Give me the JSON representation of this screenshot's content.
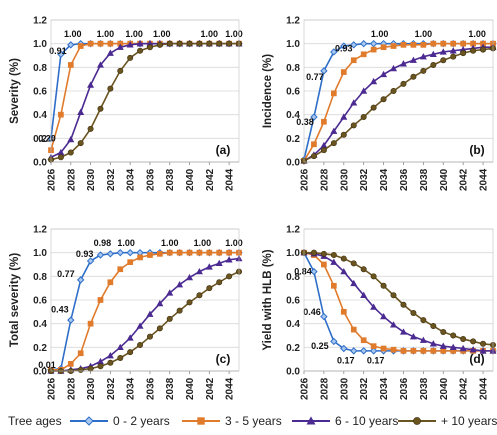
{
  "x_years": [
    2026,
    2027,
    2028,
    2029,
    2030,
    2031,
    2032,
    2033,
    2034,
    2035,
    2036,
    2037,
    2038,
    2039,
    2040,
    2041,
    2042,
    2043,
    2044,
    2045
  ],
  "x_tick_labels": [
    "2026",
    "2028",
    "2030",
    "2032",
    "2034",
    "2036",
    "2038",
    "2040",
    "2042",
    "2044"
  ],
  "y_tick_labels": [
    "0.0",
    "0.2",
    "0.4",
    "0.6",
    "0.8",
    "1.0",
    "1.2"
  ],
  "colors": {
    "0-2": "#2e6ec8",
    "3-5": "#e07b2c",
    "6-10": "#4b2a91",
    "10plus": "#6a5420"
  },
  "legend": {
    "title": "Tree ages",
    "items": [
      {
        "key": "0-2",
        "label": "0 - 2 years",
        "marker": "diamond"
      },
      {
        "key": "3-5",
        "label": "3 - 5 years",
        "marker": "square"
      },
      {
        "key": "6-10",
        "label": "6 - 10 years",
        "marker": "triangle"
      },
      {
        "key": "10plus",
        "label": "+ 10 years",
        "marker": "circle"
      }
    ]
  },
  "chart_data": [
    {
      "type": "line",
      "panel_label": "(a)",
      "ylabel": "Severity (%)",
      "ylim": [
        0,
        1.2
      ],
      "xlim": [
        2026,
        2045
      ],
      "grid": "horizontal",
      "series": [
        {
          "key": "0-2",
          "name": "0 - 2 years",
          "values": [
            0.2,
            0.91,
            0.99,
            1.0,
            1.0,
            1.0,
            1.0,
            1.0,
            1.0,
            1.0,
            1.0,
            1.0,
            1.0,
            1.0,
            1.0,
            1.0,
            1.0,
            1.0,
            1.0,
            1.0
          ]
        },
        {
          "key": "3-5",
          "name": "3 - 5 years",
          "values": [
            0.1,
            0.4,
            0.82,
            0.98,
            1.0,
            1.0,
            1.0,
            1.0,
            1.0,
            1.0,
            1.0,
            1.0,
            1.0,
            1.0,
            1.0,
            1.0,
            1.0,
            1.0,
            1.0,
            1.0
          ]
        },
        {
          "key": "6-10",
          "name": "6 - 10 years",
          "values": [
            0.04,
            0.08,
            0.19,
            0.42,
            0.65,
            0.82,
            0.92,
            0.97,
            0.99,
            1.0,
            1.0,
            1.0,
            1.0,
            1.0,
            1.0,
            1.0,
            1.0,
            1.0,
            1.0,
            1.0
          ]
        },
        {
          "key": "10plus",
          "name": "+ 10 years",
          "values": [
            0.02,
            0.04,
            0.08,
            0.16,
            0.28,
            0.45,
            0.62,
            0.77,
            0.88,
            0.94,
            0.97,
            0.99,
            1.0,
            1.0,
            1.0,
            1.0,
            1.0,
            1.0,
            1.0,
            1.0
          ]
        }
      ],
      "annotations": [
        {
          "text": "0.20",
          "x": 2025.6,
          "y": 0.2
        },
        {
          "text": "0.91",
          "x": 2026.7,
          "y": 0.94
        },
        {
          "text": "1.00",
          "x": 2028.2,
          "y": 1.08
        },
        {
          "text": "1.00",
          "x": 2031.5,
          "y": 1.08
        },
        {
          "text": "1.00",
          "x": 2034.4,
          "y": 1.08
        },
        {
          "text": "1.00",
          "x": 2037.2,
          "y": 1.08
        },
        {
          "text": "1.00",
          "x": 2042.0,
          "y": 1.08
        },
        {
          "text": "1.00",
          "x": 2044.5,
          "y": 1.08
        }
      ]
    },
    {
      "type": "line",
      "panel_label": "(b)",
      "ylabel": "Incidence (%)",
      "ylim": [
        0,
        1.2
      ],
      "xlim": [
        2026,
        2045
      ],
      "grid": "horizontal",
      "series": [
        {
          "key": "0-2",
          "name": "0 - 2 years",
          "values": [
            0.02,
            0.38,
            0.77,
            0.93,
            0.98,
            0.99,
            1.0,
            1.0,
            1.0,
            1.0,
            1.0,
            1.0,
            1.0,
            1.0,
            1.0,
            1.0,
            1.0,
            1.0,
            1.0,
            1.0
          ]
        },
        {
          "key": "3-5",
          "name": "3 - 5 years",
          "values": [
            0.01,
            0.15,
            0.34,
            0.58,
            0.76,
            0.86,
            0.91,
            0.95,
            0.97,
            0.98,
            0.99,
            0.99,
            0.99,
            1.0,
            1.0,
            1.0,
            1.0,
            1.0,
            1.0,
            1.0
          ]
        },
        {
          "key": "6-10",
          "name": "6 - 10 years",
          "values": [
            0.01,
            0.06,
            0.14,
            0.26,
            0.38,
            0.5,
            0.6,
            0.68,
            0.74,
            0.79,
            0.83,
            0.86,
            0.89,
            0.91,
            0.93,
            0.94,
            0.95,
            0.96,
            0.97,
            0.97
          ]
        },
        {
          "key": "10plus",
          "name": "+ 10 years",
          "values": [
            0.01,
            0.05,
            0.1,
            0.16,
            0.23,
            0.31,
            0.38,
            0.46,
            0.53,
            0.6,
            0.66,
            0.72,
            0.77,
            0.82,
            0.86,
            0.89,
            0.92,
            0.94,
            0.95,
            0.96
          ]
        }
      ],
      "annotations": [
        {
          "text": "0.38",
          "x": 2026.1,
          "y": 0.34
        },
        {
          "text": "0.77",
          "x": 2027.1,
          "y": 0.72
        },
        {
          "text": "0.93",
          "x": 2030.0,
          "y": 0.96
        },
        {
          "text": "1.00",
          "x": 2033.6,
          "y": 1.08
        },
        {
          "text": "1.00",
          "x": 2038.0,
          "y": 1.08
        },
        {
          "text": "1.00",
          "x": 2043.4,
          "y": 1.08
        }
      ]
    },
    {
      "type": "line",
      "panel_label": "(c)",
      "ylabel": "Total severity (%)",
      "ylim": [
        0,
        1.2
      ],
      "xlim": [
        2026,
        2045
      ],
      "grid": "horizontal",
      "series": [
        {
          "key": "0-2",
          "name": "0 - 2 years",
          "values": [
            0.01,
            0.02,
            0.43,
            0.77,
            0.93,
            0.98,
            0.99,
            1.0,
            1.0,
            1.0,
            1.0,
            1.0,
            1.0,
            1.0,
            1.0,
            1.0,
            1.0,
            1.0,
            1.0,
            1.0
          ]
        },
        {
          "key": "3-5",
          "name": "3 - 5 years",
          "values": [
            0.01,
            0.01,
            0.06,
            0.15,
            0.4,
            0.6,
            0.75,
            0.86,
            0.92,
            0.96,
            0.98,
            0.99,
            1.0,
            1.0,
            1.0,
            1.0,
            1.0,
            1.0,
            1.0,
            1.0
          ]
        },
        {
          "key": "6-10",
          "name": "6 - 10 years",
          "values": [
            0.0,
            0.0,
            0.01,
            0.02,
            0.04,
            0.08,
            0.13,
            0.2,
            0.28,
            0.38,
            0.48,
            0.57,
            0.66,
            0.73,
            0.79,
            0.84,
            0.88,
            0.91,
            0.94,
            0.95
          ]
        },
        {
          "key": "10plus",
          "name": "+ 10 years",
          "values": [
            0.0,
            0.0,
            0.0,
            0.01,
            0.02,
            0.04,
            0.07,
            0.11,
            0.16,
            0.22,
            0.29,
            0.36,
            0.44,
            0.51,
            0.58,
            0.64,
            0.7,
            0.75,
            0.8,
            0.84
          ]
        }
      ],
      "annotations": [
        {
          "text": "0.01",
          "x": 2025.6,
          "y": 0.05
        },
        {
          "text": "0.43",
          "x": 2026.9,
          "y": 0.52
        },
        {
          "text": "0.77",
          "x": 2027.5,
          "y": 0.82
        },
        {
          "text": "0.93",
          "x": 2029.4,
          "y": 0.99
        },
        {
          "text": "0.98",
          "x": 2031.2,
          "y": 1.08
        },
        {
          "text": "1.00",
          "x": 2033.6,
          "y": 1.08
        },
        {
          "text": "1.00",
          "x": 2038.0,
          "y": 1.08
        },
        {
          "text": "1.00",
          "x": 2041.3,
          "y": 1.08
        },
        {
          "text": "1.00",
          "x": 2044.5,
          "y": 1.08
        }
      ]
    },
    {
      "type": "line",
      "panel_label": "(d)",
      "ylabel": "Yield with HLB (%)",
      "ylim": [
        0,
        1.2
      ],
      "xlim": [
        2026,
        2045
      ],
      "grid": "horizontal",
      "series": [
        {
          "key": "0-2",
          "name": "0 - 2 years",
          "values": [
            1.0,
            0.84,
            0.46,
            0.25,
            0.19,
            0.17,
            0.17,
            0.17,
            0.17,
            0.17,
            0.17,
            0.17,
            0.17,
            0.17,
            0.17,
            0.17,
            0.17,
            0.17,
            0.17,
            0.17
          ]
        },
        {
          "key": "3-5",
          "name": "3 - 5 years",
          "values": [
            1.0,
            0.98,
            0.9,
            0.72,
            0.5,
            0.35,
            0.26,
            0.21,
            0.19,
            0.18,
            0.17,
            0.17,
            0.17,
            0.17,
            0.17,
            0.17,
            0.17,
            0.17,
            0.17,
            0.17
          ]
        },
        {
          "key": "6-10",
          "name": "6 - 10 years",
          "values": [
            1.0,
            0.99,
            0.97,
            0.92,
            0.84,
            0.74,
            0.64,
            0.54,
            0.46,
            0.39,
            0.33,
            0.29,
            0.26,
            0.23,
            0.21,
            0.2,
            0.19,
            0.18,
            0.17,
            0.17
          ]
        },
        {
          "key": "10plus",
          "name": "+ 10 years",
          "values": [
            1.0,
            1.0,
            0.99,
            0.98,
            0.95,
            0.91,
            0.86,
            0.8,
            0.72,
            0.64,
            0.56,
            0.49,
            0.43,
            0.38,
            0.33,
            0.3,
            0.27,
            0.25,
            0.23,
            0.22
          ]
        }
      ],
      "annotations": [
        {
          "text": "0.84",
          "x": 2025.9,
          "y": 0.84
        },
        {
          "text": "0.46",
          "x": 2026.8,
          "y": 0.5
        },
        {
          "text": "0.25",
          "x": 2027.6,
          "y": 0.21
        },
        {
          "text": "0.17",
          "x": 2030.2,
          "y": 0.09
        },
        {
          "text": "0.17",
          "x": 2033.2,
          "y": 0.09
        }
      ]
    }
  ]
}
